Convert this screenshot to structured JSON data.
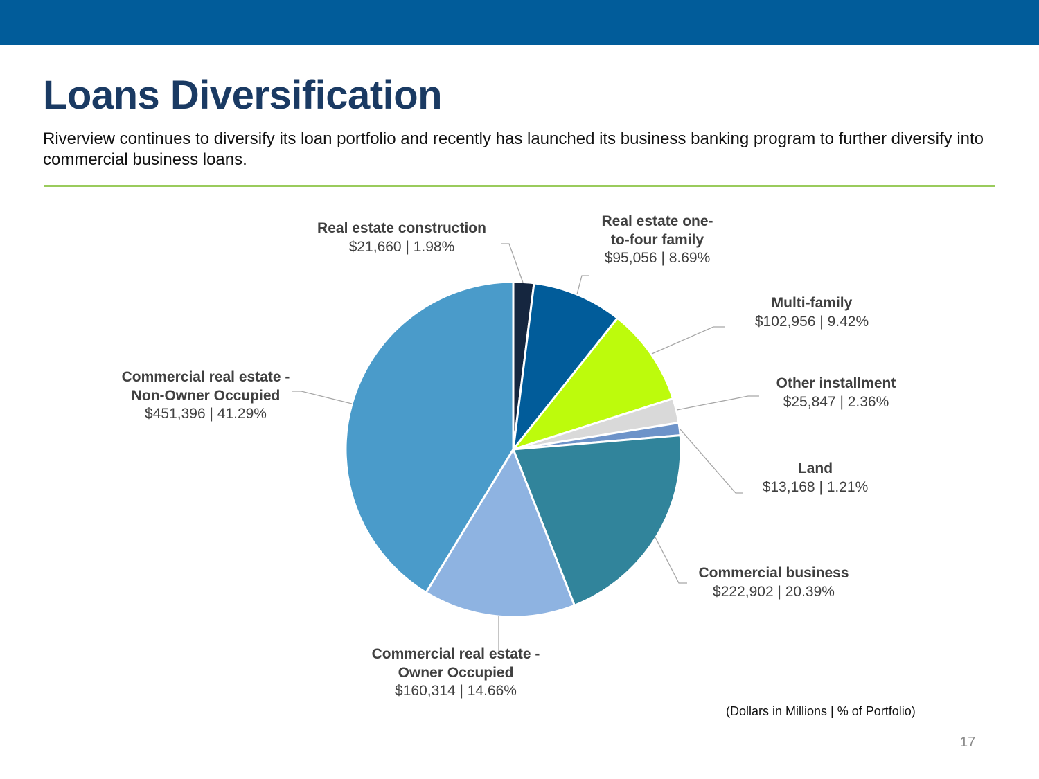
{
  "header": {
    "title": "Loans Diversification",
    "subtitle": "Riverview continues to diversify its loan portfolio and recently has launched its business banking program to further diversify into commercial business loans.",
    "bar_color": "#015c9a",
    "divider_color": "#9acb5c"
  },
  "footnote": "(Dollars in Millions | % of Portfolio)",
  "page_number": "17",
  "chart_data": {
    "type": "pie",
    "start_angle_deg": 0,
    "direction": "clockwise",
    "units": "Dollars in Millions",
    "slices": [
      {
        "name": "Real estate construction",
        "value": 21660,
        "percent": 1.98,
        "value_text": "$21,660 | 1.98%",
        "color": "#15263f"
      },
      {
        "name": "Real estate one-\nto-four family",
        "value": 95056,
        "percent": 8.69,
        "value_text": "$95,056 | 8.69%",
        "color": "#015c9a"
      },
      {
        "name": "Multi-family",
        "value": 102956,
        "percent": 9.42,
        "value_text": "$102,956 | 9.42%",
        "color": "#bdfb0c"
      },
      {
        "name": "Other installment",
        "value": 25847,
        "percent": 2.36,
        "value_text": "$25,847 | 2.36%",
        "color": "#d9d9d9"
      },
      {
        "name": "Land",
        "value": 13168,
        "percent": 1.21,
        "value_text": "$13,168 | 1.21%",
        "color": "#6d93c9"
      },
      {
        "name": "Commercial business",
        "value": 222902,
        "percent": 20.39,
        "value_text": "$222,902 | 20.39%",
        "color": "#31849b"
      },
      {
        "name": "Commercial real estate -\nOwner Occupied",
        "value": 160314,
        "percent": 14.66,
        "value_text": "$160,314 | 14.66%",
        "color": "#8eb3e1"
      },
      {
        "name": "Commercial real estate -\nNon-Owner Occupied",
        "value": 451396,
        "percent": 41.29,
        "value_text": "$451,396 | 41.29%",
        "color": "#4a9bca"
      }
    ]
  }
}
